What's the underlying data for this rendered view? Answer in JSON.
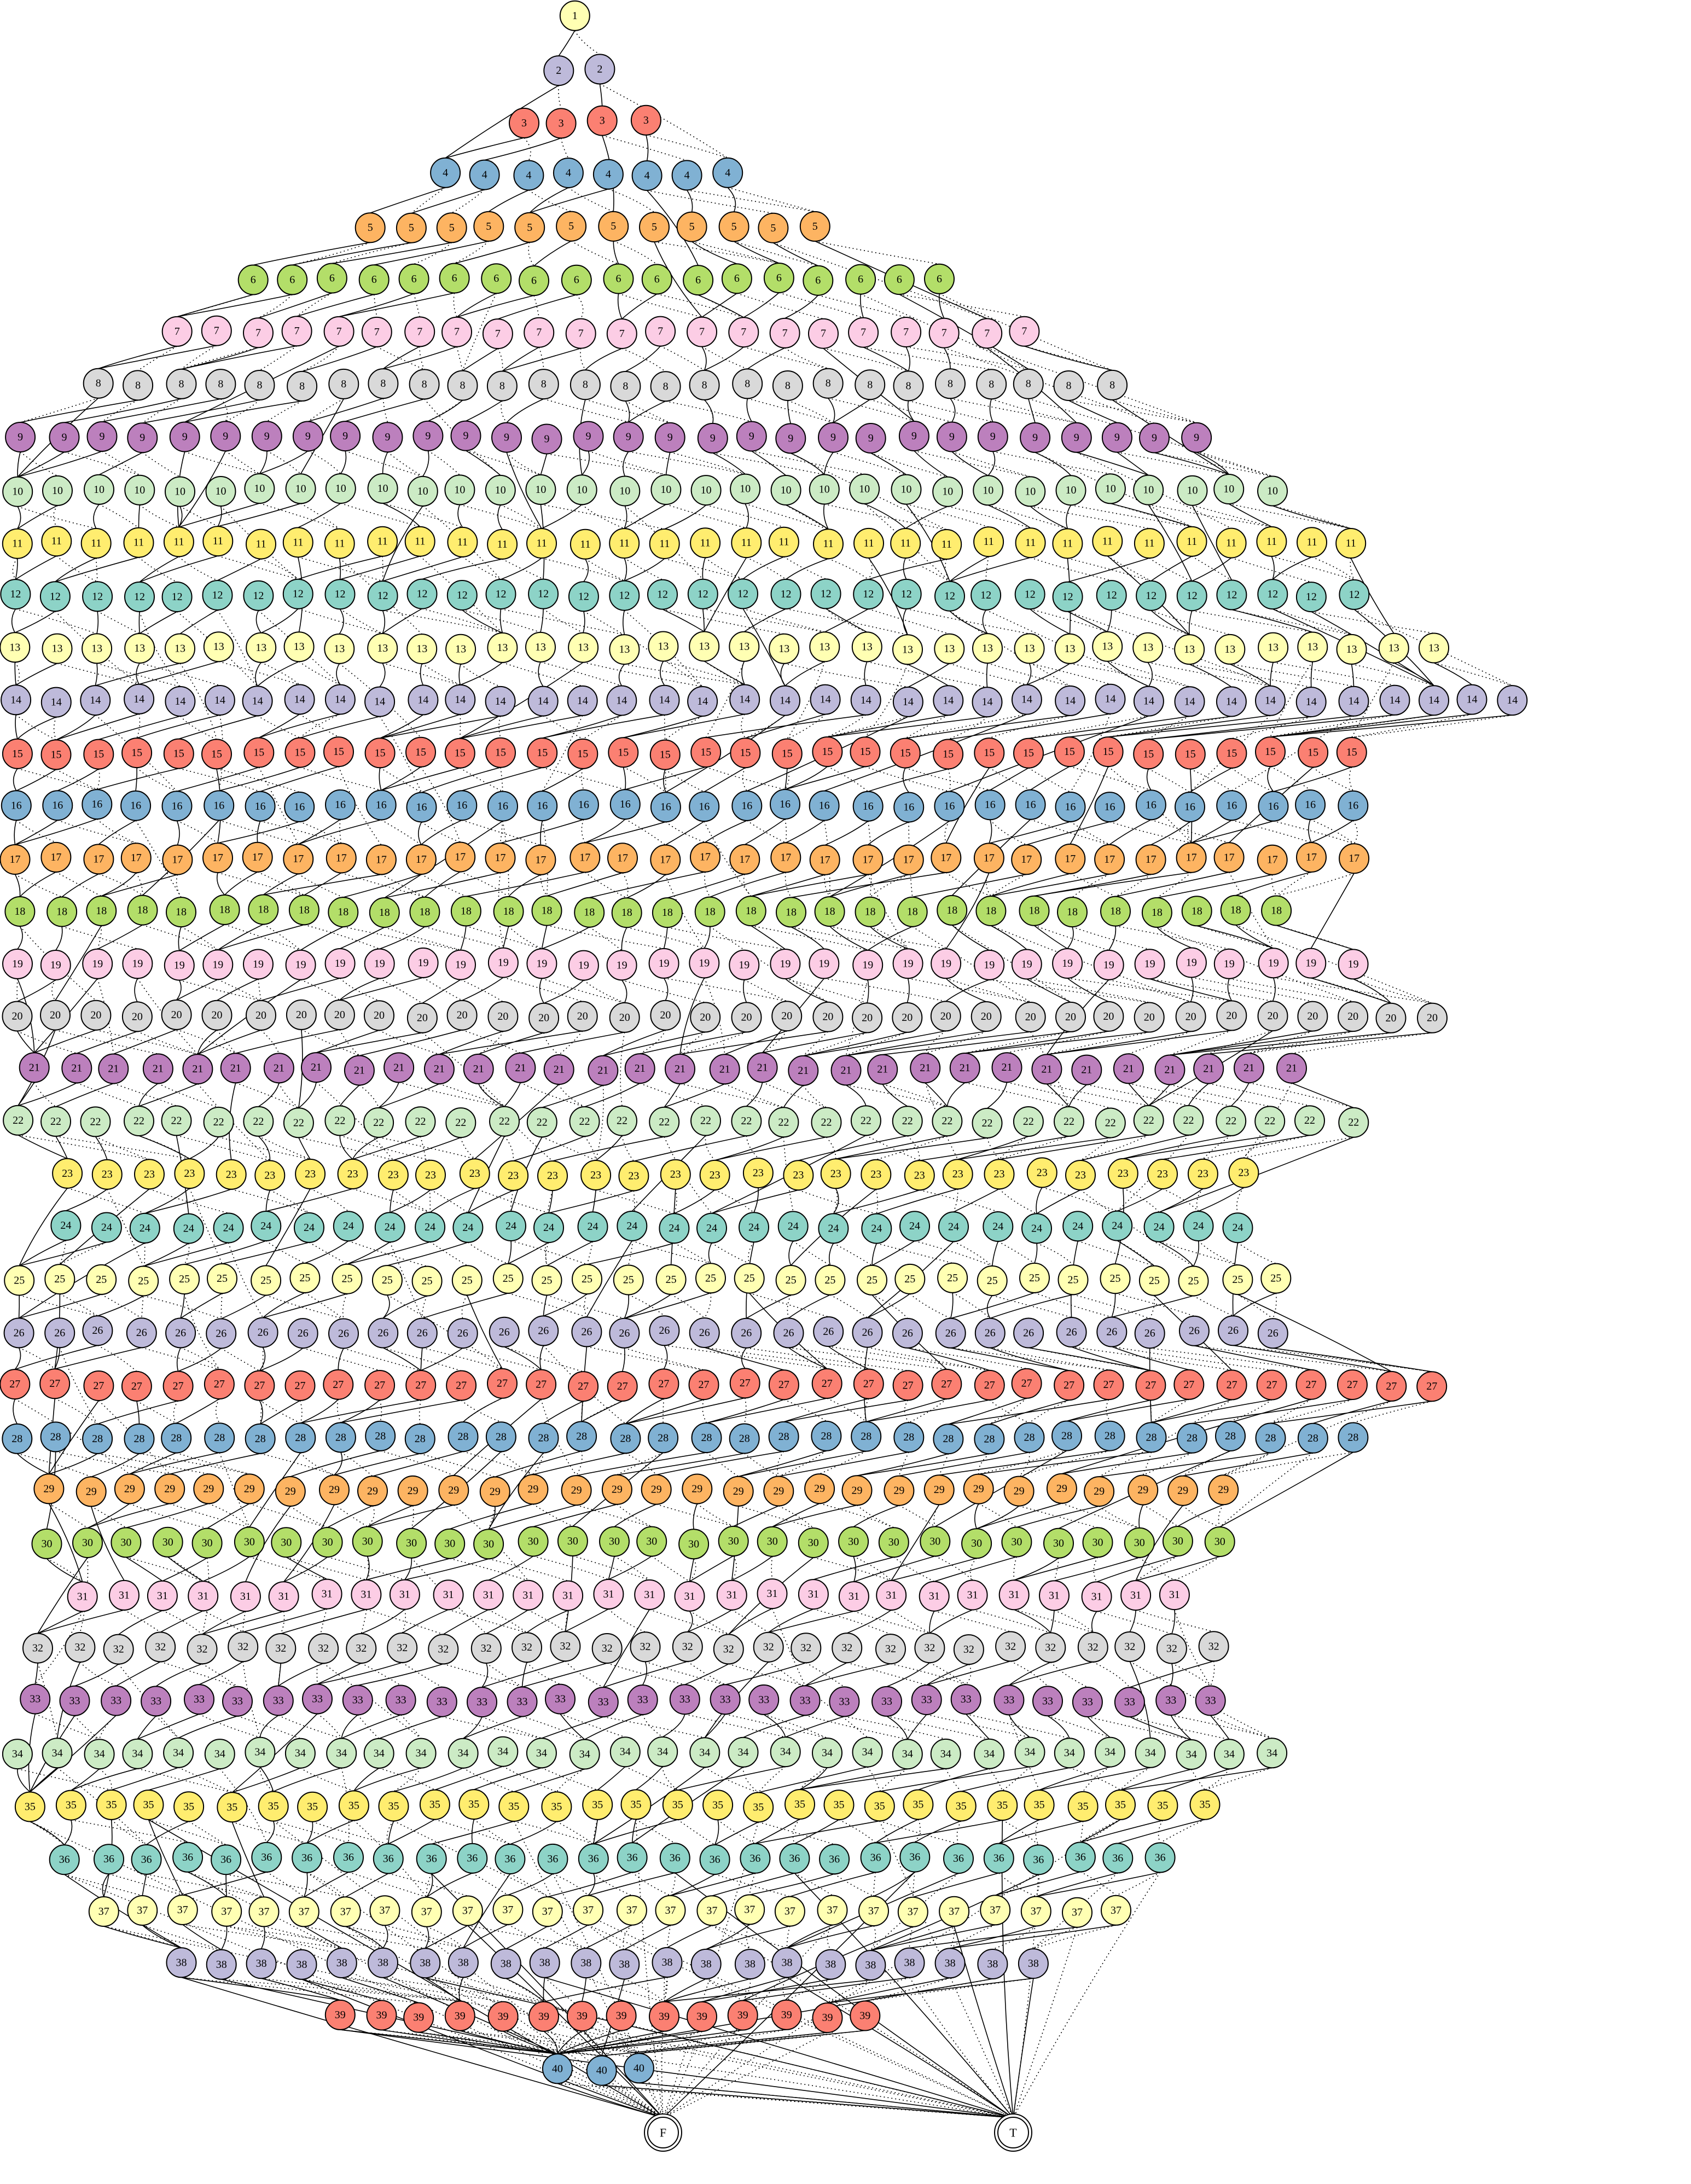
{
  "diagram": {
    "type": "binary-decision-diagram",
    "levels": 40,
    "terminals": {
      "false_label": "F",
      "true_label": "T"
    },
    "palette": [
      "#ffffb3",
      "#bebada",
      "#fb8072",
      "#80b1d3",
      "#fdb462",
      "#b3de69",
      "#fccde5",
      "#d9d9d9",
      "#bc80bd",
      "#ccebc5",
      "#ffed6f",
      "#8dd3c7"
    ],
    "level_node_counts": [
      1,
      2,
      4,
      8,
      12,
      18,
      22,
      26,
      30,
      32,
      34,
      34,
      36,
      38,
      34,
      34,
      34,
      32,
      34,
      36,
      32,
      34,
      30,
      30,
      32,
      32,
      36,
      34,
      30,
      30,
      28,
      30,
      30,
      32,
      30,
      28,
      26,
      22,
      14,
      3
    ]
  }
}
